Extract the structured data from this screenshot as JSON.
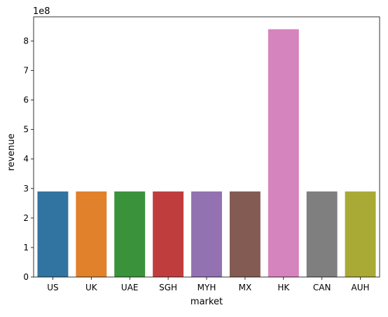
{
  "chart_data": {
    "type": "bar",
    "title": "",
    "xlabel": "market",
    "ylabel": "revenue",
    "y_scale_label": "1e8",
    "categories": [
      "US",
      "UK",
      "UAE",
      "SGH",
      "MYH",
      "MX",
      "HK",
      "CAN",
      "AUH"
    ],
    "values": [
      290000000,
      290000000,
      290000000,
      290000000,
      290000000,
      290000000,
      840000000,
      290000000,
      290000000
    ],
    "colors": [
      "#3274a1",
      "#e1812c",
      "#3a923a",
      "#c03d3e",
      "#9372b2",
      "#845b53",
      "#d684bd",
      "#7f7f7f",
      "#a9aa35"
    ],
    "y_ticks": [
      0,
      1,
      2,
      3,
      4,
      5,
      6,
      7,
      8
    ],
    "y_tick_multiplier": 100000000,
    "ylim": [
      0,
      882000000
    ],
    "grid": false,
    "legend": "none"
  }
}
